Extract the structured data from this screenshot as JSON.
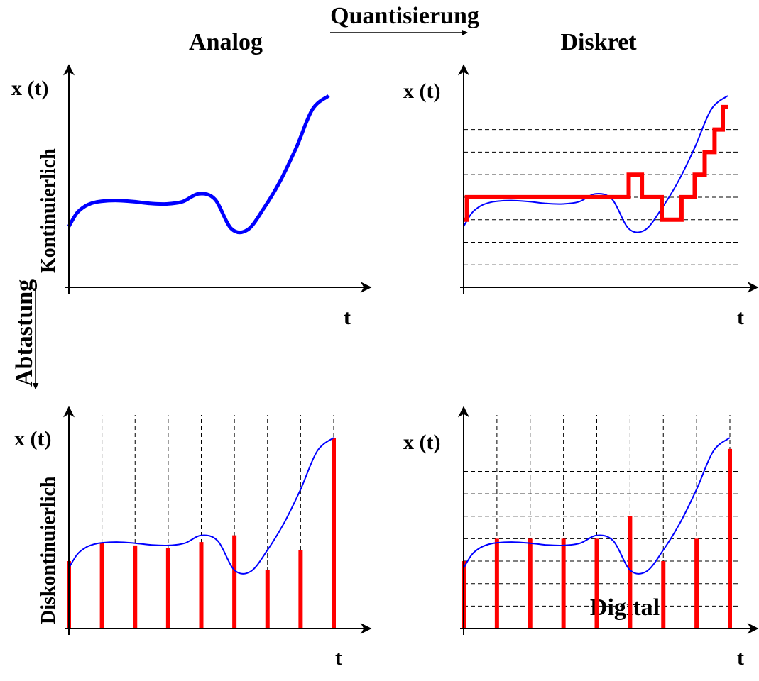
{
  "headings": {
    "analog": "Analog",
    "diskret": "Diskret",
    "quantisierung": "Quantisierung",
    "abtastung": "Abtastung",
    "digital": "Digital"
  },
  "panels": {
    "top_left": {
      "y_label": "x (t)",
      "x_label": "t",
      "side_label": "Kontinuierlich"
    },
    "top_right": {
      "y_label": "x (t)",
      "x_label": "t"
    },
    "bottom_left": {
      "y_label": "x (t)",
      "x_label": "t",
      "side_label": "Diskontinuierlich"
    },
    "bottom_right": {
      "y_label": "x (t)",
      "x_label": "t"
    }
  },
  "signal": {
    "t": [
      0,
      0.25,
      0.5,
      0.75,
      1,
      1.5,
      2,
      2.5,
      3,
      3.5,
      4,
      4.5,
      5,
      5.5,
      6,
      6.5,
      7,
      7.5,
      8
    ],
    "x": [
      2.7,
      3.3,
      3.6,
      3.75,
      3.82,
      3.85,
      3.8,
      3.72,
      3.7,
      3.8,
      4.15,
      3.9,
      2.6,
      2.55,
      3.5,
      4.7,
      6.2,
      7.9,
      8.5
    ]
  },
  "quantization_levels": [
    1,
    2,
    3,
    4,
    5,
    6,
    7
  ],
  "quantized_staircase": {
    "t": [
      0,
      0.1,
      4.3,
      5,
      5.4,
      6,
      6.6,
      7,
      7.3,
      7.6,
      7.85,
      8
    ],
    "x": [
      3,
      4,
      4,
      5,
      4,
      3,
      4,
      5,
      6,
      7,
      8,
      8
    ]
  },
  "samples": {
    "t": [
      0,
      1,
      2,
      3,
      4,
      5,
      6,
      7,
      8
    ],
    "analog_values": [
      3,
      3.8,
      3.7,
      3.6,
      3.85,
      4.15,
      2.6,
      3.5,
      8.5
    ],
    "digital_values": [
      3,
      4,
      4,
      4,
      4,
      5,
      3,
      4,
      8
    ]
  },
  "colors": {
    "axis": "#000000",
    "signal": "#0000ff",
    "quantized": "#ff0000",
    "grid": "#000000"
  }
}
